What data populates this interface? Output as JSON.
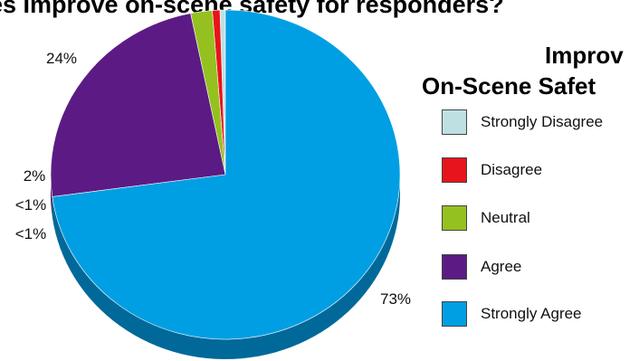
{
  "title": "es Improve on-scene safety for responders?",
  "chart_data": {
    "type": "pie",
    "title": "es Improve on-scene safety for responders?",
    "legend_title_lines": [
      "Improv",
      "On-Scene Safet"
    ],
    "legend_position": "right",
    "categories": [
      "Strongly Disagree",
      "Disagree",
      "Neutral",
      "Agree",
      "Strongly Agree"
    ],
    "values": [
      0.5,
      0.7,
      2,
      24,
      73
    ],
    "data_labels": [
      "<1%",
      "<1%",
      "2%",
      "24%",
      "73%"
    ],
    "colors": [
      "#bfe0e2",
      "#e8141c",
      "#94c11f",
      "#5c1b84",
      "#009fe3"
    ],
    "side_colors": [
      "#8fb0b2",
      "#a80e14",
      "#6a8c15",
      "#3d1258",
      "#00699a"
    ]
  }
}
